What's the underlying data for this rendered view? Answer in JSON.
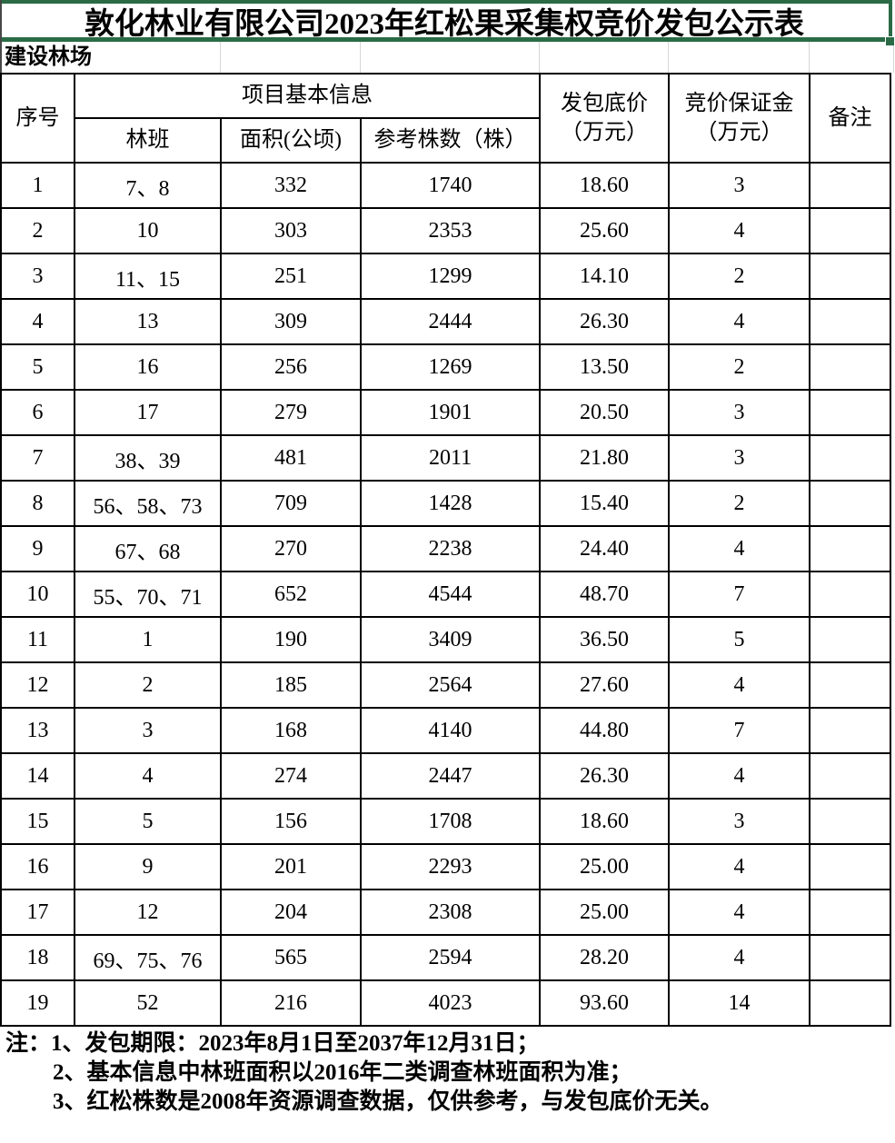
{
  "title": "敦化林业有限公司2023年红松果采集权竞价发包公示表",
  "section_label": "建设林场",
  "table": {
    "header": {
      "no": "序号",
      "group": "项目基本信息",
      "banclass": "林班",
      "area": "面积(公顷)",
      "trees": "参考株数（株）",
      "price_line1": "发包底价",
      "price_line2": "（万元）",
      "deposit_line1": "竞价保证金",
      "deposit_line2": "（万元）",
      "remark": "备注"
    },
    "rows": [
      {
        "no": "1",
        "banclass": "7、8",
        "area": "332",
        "trees": "1740",
        "price": "18.60",
        "deposit": "3",
        "remark": ""
      },
      {
        "no": "2",
        "banclass": "10",
        "area": "303",
        "trees": "2353",
        "price": "25.60",
        "deposit": "4",
        "remark": ""
      },
      {
        "no": "3",
        "banclass": "11、15",
        "area": "251",
        "trees": "1299",
        "price": "14.10",
        "deposit": "2",
        "remark": ""
      },
      {
        "no": "4",
        "banclass": "13",
        "area": "309",
        "trees": "2444",
        "price": "26.30",
        "deposit": "4",
        "remark": ""
      },
      {
        "no": "5",
        "banclass": "16",
        "area": "256",
        "trees": "1269",
        "price": "13.50",
        "deposit": "2",
        "remark": ""
      },
      {
        "no": "6",
        "banclass": "17",
        "area": "279",
        "trees": "1901",
        "price": "20.50",
        "deposit": "3",
        "remark": ""
      },
      {
        "no": "7",
        "banclass": "38、39",
        "area": "481",
        "trees": "2011",
        "price": "21.80",
        "deposit": "3",
        "remark": ""
      },
      {
        "no": "8",
        "banclass": "56、58、73",
        "area": "709",
        "trees": "1428",
        "price": "15.40",
        "deposit": "2",
        "remark": ""
      },
      {
        "no": "9",
        "banclass": "67、68",
        "area": "270",
        "trees": "2238",
        "price": "24.40",
        "deposit": "4",
        "remark": ""
      },
      {
        "no": "10",
        "banclass": "55、70、71",
        "area": "652",
        "trees": "4544",
        "price": "48.70",
        "deposit": "7",
        "remark": ""
      },
      {
        "no": "11",
        "banclass": "1",
        "area": "190",
        "trees": "3409",
        "price": "36.50",
        "deposit": "5",
        "remark": ""
      },
      {
        "no": "12",
        "banclass": "2",
        "area": "185",
        "trees": "2564",
        "price": "27.60",
        "deposit": "4",
        "remark": ""
      },
      {
        "no": "13",
        "banclass": "3",
        "area": "168",
        "trees": "4140",
        "price": "44.80",
        "deposit": "7",
        "remark": ""
      },
      {
        "no": "14",
        "banclass": "4",
        "area": "274",
        "trees": "2447",
        "price": "26.30",
        "deposit": "4",
        "remark": ""
      },
      {
        "no": "15",
        "banclass": "5",
        "area": "156",
        "trees": "1708",
        "price": "18.60",
        "deposit": "3",
        "remark": ""
      },
      {
        "no": "16",
        "banclass": "9",
        "area": "201",
        "trees": "2293",
        "price": "25.00",
        "deposit": "4",
        "remark": ""
      },
      {
        "no": "17",
        "banclass": "12",
        "area": "204",
        "trees": "2308",
        "price": "25.00",
        "deposit": "4",
        "remark": ""
      },
      {
        "no": "18",
        "banclass": "69、75、76",
        "area": "565",
        "trees": "2594",
        "price": "28.20",
        "deposit": "4",
        "remark": ""
      },
      {
        "no": "19",
        "banclass": "52",
        "area": "216",
        "trees": "4023",
        "price": "93.60",
        "deposit": "14",
        "remark": ""
      }
    ]
  },
  "notes": {
    "line1": "注：1、发包期限：2023年8月1日至2037年12月31日；",
    "line2": "2、基本信息中林班面积以2016年二类调查林班面积为准；",
    "line3": "3、红松株数是2008年资源调查数据，仅供参考，与发包底价无关。"
  },
  "colors": {
    "selection_green": "#2a6b45",
    "gridline_gray": "#d6d6d6",
    "table_border": "#000000"
  }
}
